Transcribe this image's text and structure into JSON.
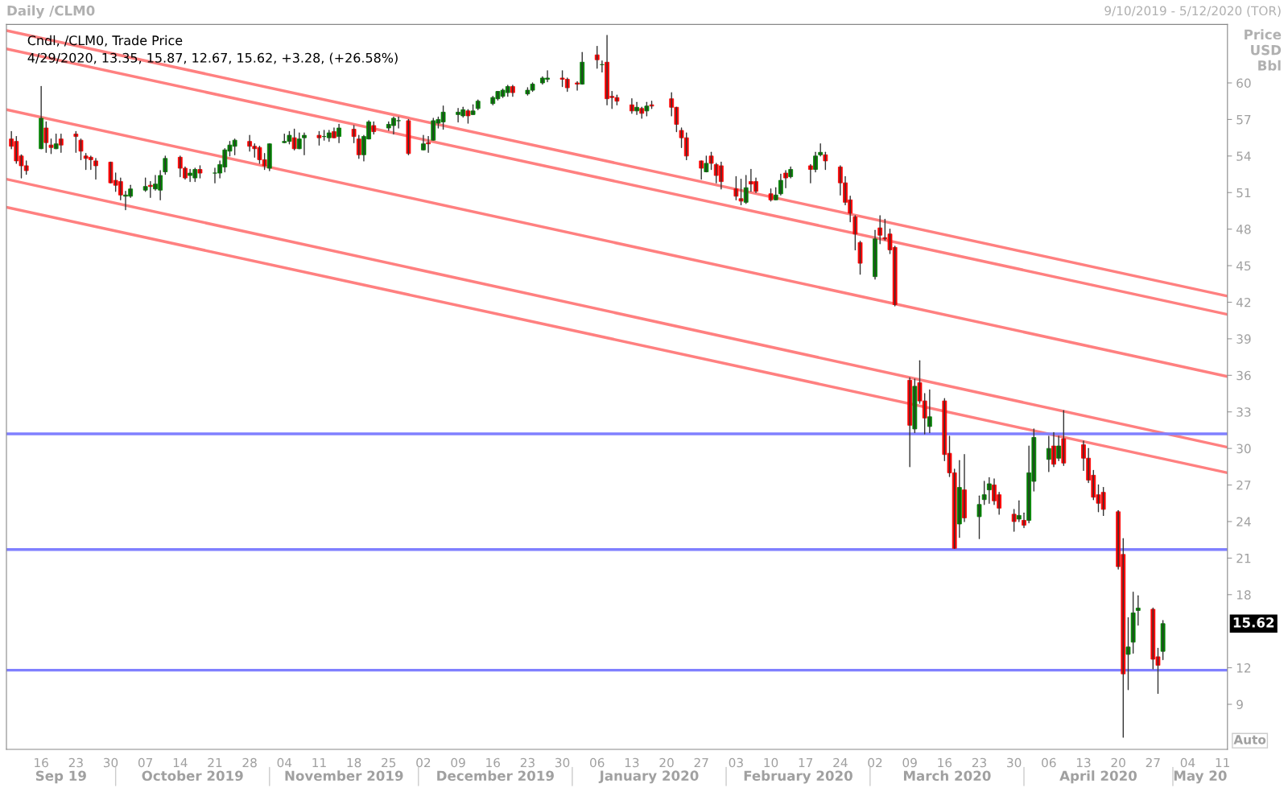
{
  "chart_data": {
    "type": "candlestick",
    "title": "Daily /CLM0",
    "subtitle": "9/10/2019 - 5/12/2020 (TOR)",
    "ylabel": "Price USD Bbl",
    "x": [
      "2019-09-10",
      "2019-09-11",
      "2019-09-12",
      "2019-09-13",
      "2019-09-16",
      "2019-09-17",
      "2019-09-18",
      "2019-09-19",
      "2019-09-20",
      "2019-09-23",
      "2019-09-24",
      "2019-09-25",
      "2019-09-26",
      "2019-09-27",
      "2019-09-30",
      "2019-10-01",
      "2019-10-02",
      "2019-10-03",
      "2019-10-04",
      "2019-10-07",
      "2019-10-08",
      "2019-10-09",
      "2019-10-10",
      "2019-10-11",
      "2019-10-14",
      "2019-10-15",
      "2019-10-16",
      "2019-10-17",
      "2019-10-18",
      "2019-10-21",
      "2019-10-22",
      "2019-10-23",
      "2019-10-24",
      "2019-10-25",
      "2019-10-28",
      "2019-10-29",
      "2019-10-30",
      "2019-10-31",
      "2019-11-01",
      "2019-11-04",
      "2019-11-05",
      "2019-11-06",
      "2019-11-07",
      "2019-11-08",
      "2019-11-11",
      "2019-11-12",
      "2019-11-13",
      "2019-11-14",
      "2019-11-15",
      "2019-11-18",
      "2019-11-19",
      "2019-11-20",
      "2019-11-21",
      "2019-11-22",
      "2019-11-25",
      "2019-11-26",
      "2019-11-27",
      "2019-11-29",
      "2019-12-02",
      "2019-12-03",
      "2019-12-04",
      "2019-12-05",
      "2019-12-06",
      "2019-12-09",
      "2019-12-10",
      "2019-12-11",
      "2019-12-12",
      "2019-12-13",
      "2019-12-16",
      "2019-12-17",
      "2019-12-18",
      "2019-12-19",
      "2019-12-20",
      "2019-12-23",
      "2019-12-24",
      "2019-12-26",
      "2019-12-27",
      "2019-12-30",
      "2019-12-31",
      "2020-01-02",
      "2020-01-03",
      "2020-01-06",
      "2020-01-07",
      "2020-01-08",
      "2020-01-09",
      "2020-01-10",
      "2020-01-13",
      "2020-01-14",
      "2020-01-15",
      "2020-01-16",
      "2020-01-17",
      "2020-01-21",
      "2020-01-22",
      "2020-01-23",
      "2020-01-24",
      "2020-01-27",
      "2020-01-28",
      "2020-01-29",
      "2020-01-30",
      "2020-01-31",
      "2020-02-03",
      "2020-02-04",
      "2020-02-05",
      "2020-02-06",
      "2020-02-07",
      "2020-02-10",
      "2020-02-11",
      "2020-02-12",
      "2020-02-13",
      "2020-02-14",
      "2020-02-18",
      "2020-02-19",
      "2020-02-20",
      "2020-02-21",
      "2020-02-24",
      "2020-02-25",
      "2020-02-26",
      "2020-02-27",
      "2020-02-28",
      "2020-03-02",
      "2020-03-03",
      "2020-03-04",
      "2020-03-05",
      "2020-03-06",
      "2020-03-09",
      "2020-03-10",
      "2020-03-11",
      "2020-03-12",
      "2020-03-13",
      "2020-03-16",
      "2020-03-17",
      "2020-03-18",
      "2020-03-19",
      "2020-03-20",
      "2020-03-23",
      "2020-03-24",
      "2020-03-25",
      "2020-03-26",
      "2020-03-27",
      "2020-03-30",
      "2020-03-31",
      "2020-04-01",
      "2020-04-02",
      "2020-04-03",
      "2020-04-06",
      "2020-04-07",
      "2020-04-08",
      "2020-04-09",
      "2020-04-13",
      "2020-04-14",
      "2020-04-15",
      "2020-04-16",
      "2020-04-17",
      "2020-04-20",
      "2020-04-21",
      "2020-04-22",
      "2020-04-23",
      "2020-04-24",
      "2020-04-27",
      "2020-04-28",
      "2020-04-29"
    ],
    "ohlc": [
      [
        55.4,
        56.0,
        54.6,
        54.8
      ],
      [
        55.2,
        55.6,
        53.4,
        53.6
      ],
      [
        54.0,
        54.1,
        52.2,
        53.2
      ],
      [
        53.2,
        53.6,
        52.5,
        52.8
      ],
      [
        54.6,
        59.7,
        54.6,
        57.1
      ],
      [
        56.3,
        56.8,
        54.3,
        55.1
      ],
      [
        54.9,
        55.4,
        54.2,
        54.7
      ],
      [
        54.6,
        55.8,
        54.6,
        55.0
      ],
      [
        55.4,
        55.8,
        54.3,
        54.9
      ],
      [
        55.8,
        56.0,
        54.3,
        55.6
      ],
      [
        55.3,
        55.4,
        53.7,
        54.4
      ],
      [
        54.0,
        54.2,
        52.9,
        53.8
      ],
      [
        53.9,
        54.0,
        52.9,
        53.7
      ],
      [
        53.6,
        53.8,
        52.1,
        53.2
      ],
      [
        53.5,
        53.5,
        51.8,
        51.8
      ],
      [
        52.0,
        52.6,
        51.1,
        51.6
      ],
      [
        51.9,
        52.2,
        50.4,
        50.8
      ],
      [
        50.7,
        51.1,
        49.6,
        50.8
      ],
      [
        50.7,
        51.6,
        50.6,
        51.3
      ],
      [
        51.2,
        52.2,
        51.1,
        51.5
      ],
      [
        51.6,
        51.9,
        50.6,
        51.5
      ],
      [
        51.3,
        52.4,
        51.2,
        51.7
      ],
      [
        51.2,
        52.8,
        50.4,
        52.4
      ],
      [
        52.7,
        54.0,
        52.5,
        53.8
      ],
      [
        53.9,
        54.0,
        52.3,
        53.0
      ],
      [
        53.0,
        53.1,
        52.1,
        52.2
      ],
      [
        52.4,
        52.9,
        51.9,
        52.6
      ],
      [
        52.2,
        53.0,
        51.9,
        52.9
      ],
      [
        52.9,
        53.2,
        52.2,
        52.6
      ],
      [
        52.6,
        53.0,
        51.8,
        52.6
      ],
      [
        52.6,
        53.6,
        52.2,
        53.3
      ],
      [
        53.1,
        54.6,
        52.7,
        54.5
      ],
      [
        54.4,
        55.2,
        54.0,
        54.9
      ],
      [
        54.8,
        55.4,
        54.1,
        55.3
      ],
      [
        55.2,
        55.7,
        54.4,
        54.8
      ],
      [
        54.8,
        55.0,
        53.9,
        54.6
      ],
      [
        54.7,
        54.8,
        53.4,
        53.7
      ],
      [
        53.7,
        54.2,
        52.9,
        53.2
      ],
      [
        53.0,
        55.0,
        52.8,
        55.0
      ],
      [
        55.1,
        55.8,
        55.1,
        55.2
      ],
      [
        55.2,
        56.0,
        55.0,
        55.7
      ],
      [
        55.5,
        56.2,
        54.5,
        54.6
      ],
      [
        54.6,
        55.9,
        54.6,
        55.4
      ],
      [
        55.5,
        55.9,
        54.1,
        55.7
      ],
      [
        55.7,
        56.0,
        54.9,
        55.5
      ],
      [
        55.6,
        56.1,
        55.3,
        55.6
      ],
      [
        55.5,
        56.1,
        55.2,
        55.9
      ],
      [
        56.0,
        56.3,
        55.5,
        55.5
      ],
      [
        55.6,
        56.6,
        55.1,
        56.3
      ],
      [
        56.2,
        56.5,
        55.1,
        55.6
      ],
      [
        55.4,
        55.7,
        53.8,
        54.1
      ],
      [
        54.1,
        55.7,
        53.6,
        55.6
      ],
      [
        55.4,
        56.9,
        55.4,
        56.8
      ],
      [
        56.5,
        56.8,
        55.8,
        56.0
      ],
      [
        56.3,
        56.8,
        56.1,
        56.6
      ],
      [
        56.5,
        57.2,
        55.8,
        57.1
      ],
      [
        56.9,
        57.2,
        56.3,
        56.9
      ],
      [
        56.9,
        57.0,
        54.1,
        54.2
      ],
      [
        54.5,
        55.7,
        54.5,
        55.0
      ],
      [
        55.1,
        55.6,
        54.3,
        55.0
      ],
      [
        55.3,
        57.1,
        55.3,
        56.9
      ],
      [
        56.7,
        57.2,
        56.3,
        57.0
      ],
      [
        56.8,
        58.1,
        56.2,
        57.6
      ],
      [
        57.4,
        57.9,
        56.8,
        57.6
      ],
      [
        57.3,
        58.0,
        57.2,
        57.8
      ],
      [
        57.7,
        57.8,
        56.7,
        57.3
      ],
      [
        57.4,
        58.2,
        57.4,
        57.7
      ],
      [
        57.9,
        58.6,
        57.8,
        58.5
      ],
      [
        58.3,
        58.9,
        58.2,
        58.8
      ],
      [
        58.7,
        59.3,
        58.6,
        59.3
      ],
      [
        58.9,
        59.5,
        58.8,
        59.4
      ],
      [
        59.2,
        59.8,
        58.9,
        59.7
      ],
      [
        59.7,
        59.8,
        58.9,
        59.2
      ],
      [
        59.1,
        59.6,
        59.0,
        59.4
      ],
      [
        59.4,
        60.0,
        59.3,
        59.9
      ],
      [
        60.0,
        60.5,
        59.9,
        60.4
      ],
      [
        60.3,
        61.0,
        60.1,
        60.4
      ],
      [
        60.4,
        61.0,
        59.7,
        60.3
      ],
      [
        60.3,
        60.4,
        59.3,
        59.6
      ],
      [
        60.0,
        60.1,
        59.4,
        59.9
      ],
      [
        59.9,
        62.5,
        59.9,
        61.7
      ],
      [
        62.3,
        63.0,
        61.2,
        61.9
      ],
      [
        61.5,
        61.8,
        60.9,
        61.5
      ],
      [
        61.7,
        63.9,
        58.2,
        58.7
      ],
      [
        58.9,
        59.3,
        57.9,
        58.8
      ],
      [
        58.8,
        59.0,
        58.2,
        58.5
      ],
      [
        58.2,
        58.7,
        57.5,
        57.7
      ],
      [
        57.7,
        58.4,
        57.4,
        58.0
      ],
      [
        57.9,
        58.0,
        57.1,
        57.5
      ],
      [
        57.7,
        58.4,
        57.3,
        58.1
      ],
      [
        58.2,
        58.5,
        57.9,
        58.1
      ],
      [
        58.7,
        59.2,
        57.3,
        58.0
      ],
      [
        58.0,
        58.0,
        56.0,
        56.6
      ],
      [
        56.1,
        56.3,
        54.7,
        55.5
      ],
      [
        55.5,
        55.9,
        53.7,
        54.0
      ],
      [
        53.6,
        53.6,
        52.1,
        53.0
      ],
      [
        52.7,
        54.0,
        52.7,
        53.4
      ],
      [
        54.0,
        54.3,
        52.9,
        53.4
      ],
      [
        53.3,
        53.4,
        51.8,
        52.4
      ],
      [
        53.2,
        53.5,
        51.3,
        51.9
      ],
      [
        51.3,
        52.3,
        50.4,
        50.7
      ],
      [
        50.5,
        52.1,
        50.0,
        50.3
      ],
      [
        50.2,
        52.4,
        50.1,
        51.4
      ],
      [
        51.9,
        52.9,
        51.1,
        51.7
      ],
      [
        51.9,
        52.2,
        51.0,
        51.1
      ],
      [
        50.9,
        51.3,
        50.3,
        50.4
      ],
      [
        50.4,
        51.4,
        50.4,
        50.8
      ],
      [
        50.9,
        52.5,
        50.8,
        52.0
      ],
      [
        52.6,
        52.8,
        51.4,
        52.2
      ],
      [
        52.3,
        53.1,
        52.2,
        52.9
      ],
      [
        53.2,
        53.3,
        51.8,
        52.9
      ],
      [
        52.9,
        54.3,
        52.7,
        54.0
      ],
      [
        54.1,
        55.0,
        54.0,
        54.3
      ],
      [
        54.1,
        54.3,
        52.9,
        53.6
      ],
      [
        53.1,
        53.2,
        50.8,
        51.8
      ],
      [
        51.8,
        52.3,
        50.0,
        50.2
      ],
      [
        50.4,
        50.7,
        48.6,
        49.3
      ],
      [
        49.0,
        49.1,
        46.3,
        47.6
      ],
      [
        46.9,
        47.0,
        44.3,
        45.2
      ],
      [
        44.1,
        47.9,
        43.9,
        47.2
      ],
      [
        48.1,
        49.1,
        46.8,
        47.5
      ],
      [
        47.3,
        48.8,
        47.1,
        47.2
      ],
      [
        47.6,
        48.0,
        46.0,
        46.3
      ],
      [
        46.5,
        46.6,
        41.7,
        41.8
      ],
      [
        35.6,
        35.8,
        28.5,
        31.9
      ],
      [
        31.6,
        35.7,
        31.3,
        35.1
      ],
      [
        35.4,
        37.2,
        33.7,
        33.9
      ],
      [
        33.9,
        34.5,
        31.2,
        32.5
      ],
      [
        31.8,
        34.8,
        31.3,
        32.6
      ],
      [
        33.9,
        34.1,
        29.0,
        29.5
      ],
      [
        29.6,
        31.0,
        27.7,
        28.0
      ],
      [
        28.0,
        28.3,
        21.8,
        21.8
      ],
      [
        23.8,
        29.0,
        22.7,
        26.8
      ],
      [
        26.6,
        29.5,
        24.0,
        24.3
      ],
      [
        24.4,
        26.1,
        22.6,
        25.4
      ],
      [
        25.8,
        27.3,
        25.4,
        26.2
      ],
      [
        26.6,
        27.6,
        25.5,
        27.1
      ],
      [
        27.0,
        27.5,
        25.4,
        25.7
      ],
      [
        26.2,
        26.4,
        24.6,
        25.1
      ],
      [
        24.6,
        25.0,
        23.2,
        24.0
      ],
      [
        24.2,
        25.7,
        24.0,
        24.5
      ],
      [
        24.1,
        24.7,
        23.5,
        23.7
      ],
      [
        24.1,
        30.2,
        23.9,
        28.0
      ],
      [
        27.3,
        31.6,
        26.5,
        30.9
      ],
      [
        29.1,
        31.0,
        28.1,
        30.0
      ],
      [
        30.2,
        31.3,
        28.5,
        28.7
      ],
      [
        29.2,
        31.0,
        29.0,
        30.2
      ],
      [
        30.8,
        33.1,
        28.6,
        28.8
      ],
      [
        30.3,
        30.6,
        28.2,
        29.2
      ],
      [
        29.2,
        30.0,
        27.2,
        27.4
      ],
      [
        27.8,
        28.2,
        25.8,
        26.0
      ],
      [
        26.2,
        27.0,
        24.8,
        25.5
      ],
      [
        26.4,
        26.8,
        24.5,
        25.0
      ],
      [
        24.8,
        24.9,
        20.1,
        20.3
      ],
      [
        21.3,
        22.6,
        6.3,
        11.5
      ],
      [
        13.1,
        16.1,
        10.2,
        13.7
      ],
      [
        14.1,
        18.2,
        13.2,
        16.5
      ],
      [
        16.7,
        17.9,
        15.5,
        16.9
      ],
      [
        16.8,
        16.9,
        11.9,
        12.7
      ],
      [
        12.9,
        13.6,
        9.9,
        12.2
      ],
      [
        13.35,
        15.87,
        12.67,
        15.62
      ]
    ],
    "colors": [
      "#ff0000",
      "#ff0000",
      "#ff0000",
      "#ff0000",
      "#008000",
      "#ff0000",
      "#ff0000",
      "#008000",
      "#ff0000",
      "#ff0000",
      "#ff0000",
      "#ff0000",
      "#ff0000",
      "#ff0000",
      "#ff0000",
      "#ff0000",
      "#ff0000",
      "#008000",
      "#008000",
      "#008000",
      "#ff0000",
      "#008000",
      "#008000",
      "#008000",
      "#ff0000",
      "#ff0000",
      "#008000",
      "#008000",
      "#ff0000",
      "#008000",
      "#008000",
      "#008000",
      "#008000",
      "#008000",
      "#ff0000",
      "#ff0000",
      "#ff0000",
      "#ff0000",
      "#008000",
      "#008000",
      "#008000",
      "#ff0000",
      "#008000",
      "#008000",
      "#ff0000",
      "#008000",
      "#008000",
      "#ff0000",
      "#008000",
      "#ff0000",
      "#ff0000",
      "#008000",
      "#008000",
      "#ff0000",
      "#008000",
      "#008000",
      "#008000",
      "#ff0000",
      "#008000",
      "#ff0000",
      "#008000",
      "#008000",
      "#008000",
      "#008000",
      "#008000",
      "#ff0000",
      "#008000",
      "#008000",
      "#008000",
      "#008000",
      "#008000",
      "#008000",
      "#ff0000",
      "#008000",
      "#008000",
      "#008000",
      "#008000",
      "#ff0000",
      "#ff0000",
      "#ff0000",
      "#008000",
      "#ff0000",
      "#008000",
      "#ff0000",
      "#ff0000",
      "#ff0000",
      "#ff0000",
      "#008000",
      "#ff0000",
      "#008000",
      "#ff0000",
      "#ff0000",
      "#ff0000",
      "#ff0000",
      "#ff0000",
      "#ff0000",
      "#008000",
      "#ff0000",
      "#ff0000",
      "#ff0000",
      "#ff0000",
      "#ff0000",
      "#008000",
      "#ff0000",
      "#ff0000",
      "#ff0000",
      "#008000",
      "#008000",
      "#ff0000",
      "#008000",
      "#ff0000",
      "#008000",
      "#008000",
      "#ff0000",
      "#ff0000",
      "#ff0000",
      "#ff0000",
      "#ff0000",
      "#ff0000",
      "#008000",
      "#ff0000",
      "#ff0000",
      "#ff0000",
      "#ff0000",
      "#ff0000",
      "#008000",
      "#ff0000",
      "#ff0000",
      "#008000",
      "#ff0000",
      "#ff0000",
      "#ff0000",
      "#008000",
      "#ff0000",
      "#008000",
      "#008000",
      "#008000",
      "#ff0000",
      "#ff0000",
      "#ff0000",
      "#008000",
      "#ff0000",
      "#008000",
      "#008000",
      "#008000",
      "#ff0000",
      "#008000",
      "#ff0000",
      "#ff0000",
      "#ff0000",
      "#ff0000",
      "#ff0000",
      "#ff0000",
      "#ff0000",
      "#ff0000",
      "#008000",
      "#008000",
      "#008000",
      "#ff0000",
      "#ff0000",
      "#008000"
    ],
    "series": [
      {
        "type": "line",
        "color": "#ff8080",
        "x": [
          "2019-09-09",
          "2020-05-12"
        ],
        "values": [
          64.3,
          42.5
        ]
      },
      {
        "type": "line",
        "color": "#ff8080",
        "x": [
          "2019-09-09",
          "2020-05-12"
        ],
        "values": [
          62.8,
          41.0
        ]
      },
      {
        "type": "line",
        "color": "#ff8080",
        "x": [
          "2019-09-09",
          "2020-05-12"
        ],
        "values": [
          57.8,
          35.9
        ]
      },
      {
        "type": "line",
        "color": "#ff8080",
        "x": [
          "2019-09-09",
          "2020-05-12"
        ],
        "values": [
          52.1,
          30.1
        ]
      },
      {
        "type": "line",
        "color": "#ff8080",
        "x": [
          "2019-09-09",
          "2020-05-12"
        ],
        "values": [
          49.8,
          28.0
        ]
      }
    ],
    "ref_lines": [
      {
        "axis": "y",
        "value": 31.2,
        "color": "#8080ff"
      },
      {
        "axis": "y",
        "value": 21.7,
        "color": "#8080ff"
      },
      {
        "axis": "y",
        "value": 11.8,
        "color": "#8080ff"
      }
    ],
    "xlim": [
      "2019-09-09",
      "2020-05-12"
    ],
    "xticks": [
      {
        "value": "2019-09-16",
        "label": "16"
      },
      {
        "value": "2019-09-23",
        "label": "23"
      },
      {
        "value": "2019-09-30",
        "label": "30"
      },
      {
        "value": "2019-10-07",
        "label": "07"
      },
      {
        "value": "2019-10-14",
        "label": "14"
      },
      {
        "value": "2019-10-21",
        "label": "21"
      },
      {
        "value": "2019-10-28",
        "label": "28"
      },
      {
        "value": "2019-11-04",
        "label": "04"
      },
      {
        "value": "2019-11-11",
        "label": "11"
      },
      {
        "value": "2019-11-18",
        "label": "18"
      },
      {
        "value": "2019-11-25",
        "label": "25"
      },
      {
        "value": "2019-12-02",
        "label": "02"
      },
      {
        "value": "2019-12-09",
        "label": "09"
      },
      {
        "value": "2019-12-16",
        "label": "16"
      },
      {
        "value": "2019-12-23",
        "label": "23"
      },
      {
        "value": "2019-12-30",
        "label": "30"
      },
      {
        "value": "2020-01-06",
        "label": "06"
      },
      {
        "value": "2020-01-13",
        "label": "13"
      },
      {
        "value": "2020-01-20",
        "label": "20"
      },
      {
        "value": "2020-01-27",
        "label": "27"
      },
      {
        "value": "2020-02-03",
        "label": "03"
      },
      {
        "value": "2020-02-10",
        "label": "10"
      },
      {
        "value": "2020-02-17",
        "label": "17"
      },
      {
        "value": "2020-02-24",
        "label": "24"
      },
      {
        "value": "2020-03-02",
        "label": "02"
      },
      {
        "value": "2020-03-09",
        "label": "09"
      },
      {
        "value": "2020-03-16",
        "label": "16"
      },
      {
        "value": "2020-03-23",
        "label": "23"
      },
      {
        "value": "2020-03-30",
        "label": "30"
      },
      {
        "value": "2020-04-06",
        "label": "06"
      },
      {
        "value": "2020-04-13",
        "label": "13"
      },
      {
        "value": "2020-04-20",
        "label": "20"
      },
      {
        "value": "2020-04-27",
        "label": "27"
      },
      {
        "value": "2020-05-04",
        "label": "04"
      },
      {
        "value": "2020-05-11",
        "label": "11"
      }
    ],
    "ylim": [
      5.3,
      64.8
    ],
    "yticks": [
      9,
      12,
      18,
      21,
      24,
      27,
      30,
      33,
      36,
      39,
      42,
      45,
      48,
      51,
      54,
      57,
      60
    ],
    "grid": false,
    "annotations": [
      "Cndl, /CLM0, Trade Price",
      "4/29/2020, 13.35, 15.87, 12.67, 15.62, +3.28, (+26.58%)",
      "15.62",
      "Auto",
      "Sep 19",
      "October 2019",
      "November 2019",
      "December 2019",
      "January 2020",
      "February 2020",
      "March 2020",
      "April 2020",
      "May 20"
    ]
  }
}
